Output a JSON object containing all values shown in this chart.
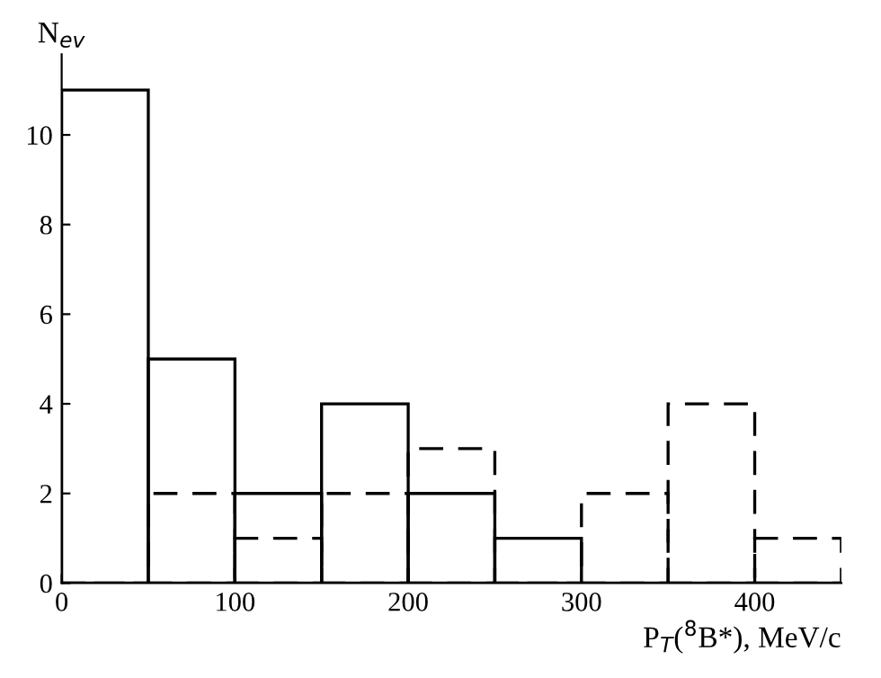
{
  "chart_data": {
    "type": "histogram",
    "xlabel": "P$_{T}$($^{8}$B*), MeV/c",
    "ylabel": "N$_{ev}$",
    "bins": [
      0,
      50,
      100,
      150,
      200,
      250,
      300,
      350,
      400,
      450
    ],
    "series": [
      {
        "color": "#000000",
        "line_style": "solid",
        "values": [
          11,
          5,
          2,
          4,
          2,
          1,
          0,
          0,
          0
        ]
      },
      {
        "color": "#000000",
        "line_style": "dashed",
        "values": [
          0,
          2,
          1,
          2,
          3,
          0,
          2,
          4,
          1
        ]
      }
    ],
    "xlim": [
      0,
      450
    ],
    "ylim": [
      0,
      11.8
    ],
    "xticks": [
      0,
      100,
      200,
      300,
      400
    ],
    "yticks": [
      0,
      2,
      4,
      6,
      8,
      10
    ],
    "grid": false,
    "legend": false
  }
}
